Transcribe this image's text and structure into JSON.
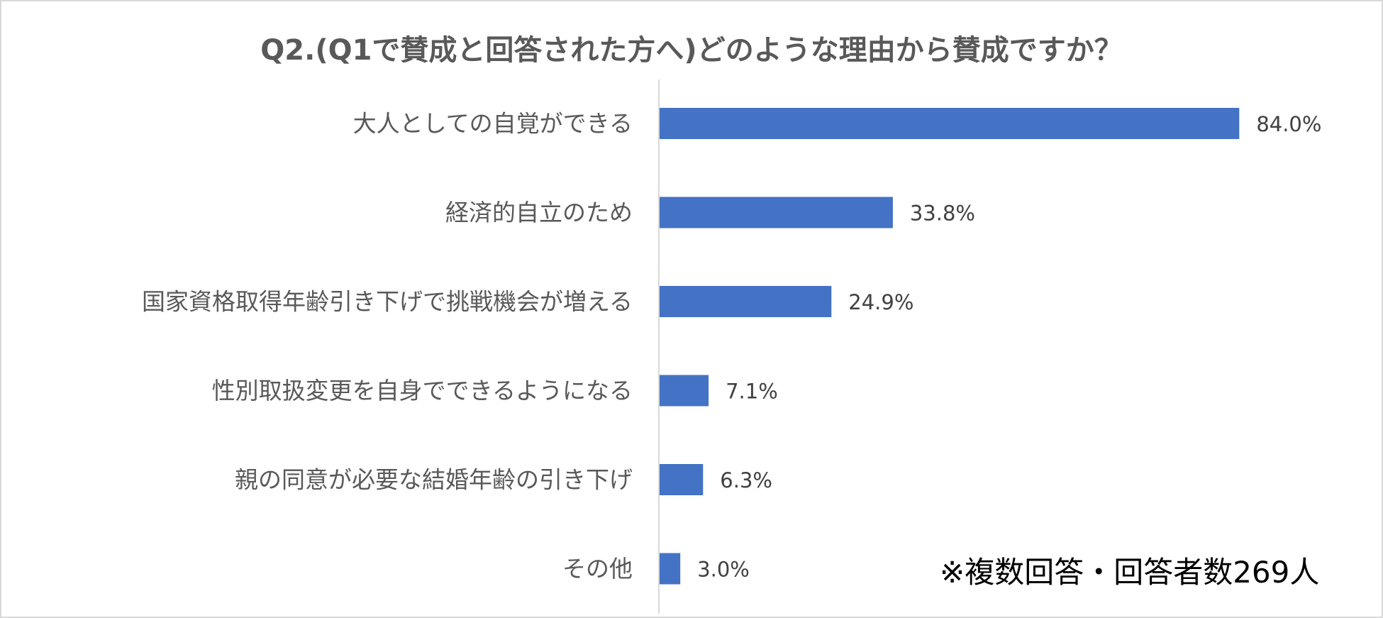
{
  "chart_data": {
    "type": "bar",
    "orientation": "horizontal",
    "title": "Q2.(Q1で賛成と回答された方へ)どのような理由から賛成ですか？",
    "categories": [
      "大人としての自覚ができる",
      "経済的自立のため",
      "国家資格取得年齢引き下げで挑戦機会が増える",
      "性別取扱変更を自身でできるようになる",
      "親の同意が必要な結婚年齢の引き下げ",
      "その他"
    ],
    "values": [
      84.0,
      33.8,
      24.9,
      7.1,
      6.3,
      3.0
    ],
    "data_labels": [
      "84.0%",
      "33.8%",
      "24.9%",
      "7.1%",
      "6.3%",
      "3.0%"
    ],
    "unit": "%",
    "xlim": [
      0,
      100
    ],
    "grid": false,
    "legend": "none",
    "bar_color": "#4472C4",
    "note": "※複数回答・回答者数269人"
  }
}
